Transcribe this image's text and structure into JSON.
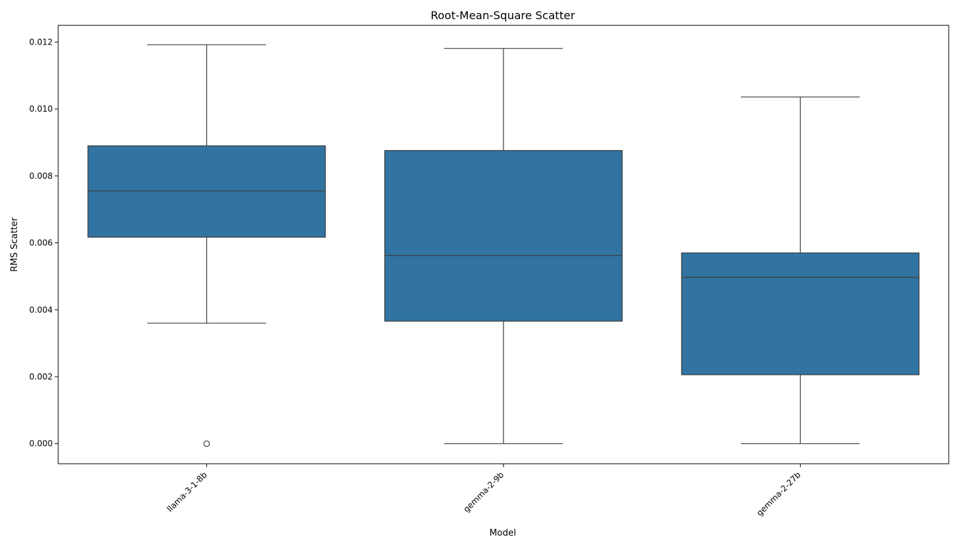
{
  "chart_data": {
    "type": "box",
    "title": "Root-Mean-Square Scatter",
    "xlabel": "Model",
    "ylabel": "RMS Scatter",
    "ylim": [
      -0.0006,
      0.0125
    ],
    "yticks": [
      "0.000",
      "0.002",
      "0.004",
      "0.006",
      "0.008",
      "0.010",
      "0.012"
    ],
    "categories": [
      "llama-3-1-8b",
      "gemma-2-9b",
      "gemma-2-27b"
    ],
    "boxes": [
      {
        "category": "llama-3-1-8b",
        "whisker_low": 0.0036,
        "q1": 0.00617,
        "median": 0.00755,
        "q3": 0.0089,
        "whisker_high": 0.01192,
        "outliers": [
          0.0
        ]
      },
      {
        "category": "gemma-2-9b",
        "whisker_low": 0.0,
        "q1": 0.00366,
        "median": 0.00562,
        "q3": 0.00876,
        "whisker_high": 0.01181,
        "outliers": []
      },
      {
        "category": "gemma-2-27b",
        "whisker_low": 0.0,
        "q1": 0.00206,
        "median": 0.00497,
        "q3": 0.0057,
        "whisker_high": 0.01036,
        "outliers": []
      }
    ],
    "box_color": "#3274a1",
    "line_color": "#3d3d3d",
    "grid": false,
    "legend": "none"
  }
}
